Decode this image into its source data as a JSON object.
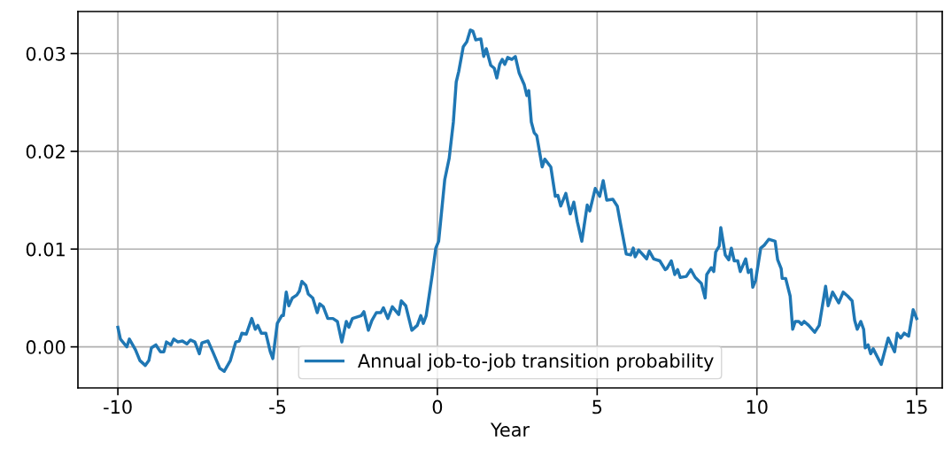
{
  "chart_data": {
    "type": "line",
    "xlabel": "Year",
    "grid": true,
    "legend": "bottom",
    "xlim": [
      -11.25,
      15.8
    ],
    "xticks": [
      -10,
      -5,
      0,
      5,
      10,
      15
    ],
    "ylim": [
      -0.0042,
      0.0343
    ],
    "yticks": [
      {
        "value": 0,
        "label": "0.00"
      },
      {
        "value": 0.01,
        "label": "0.01"
      },
      {
        "value": 0.02,
        "label": "0.02"
      },
      {
        "value": 0.03,
        "label": "0.03"
      }
    ],
    "series": [
      {
        "name": "Annual job-to-job transition probability",
        "color": "#1f77b4",
        "x": [
          -10.0,
          -9.92,
          -9.72,
          -9.64,
          -9.45,
          -9.31,
          -9.14,
          -9.03,
          -8.95,
          -8.81,
          -8.67,
          -8.56,
          -8.48,
          -8.34,
          -8.25,
          -8.12,
          -7.98,
          -7.84,
          -7.73,
          -7.59,
          -7.45,
          -7.37,
          -7.18,
          -7.03,
          -6.81,
          -6.67,
          -6.48,
          -6.31,
          -6.2,
          -6.12,
          -5.98,
          -5.81,
          -5.7,
          -5.62,
          -5.51,
          -5.37,
          -5.23,
          -5.15,
          -5.01,
          -4.87,
          -4.82,
          -4.73,
          -4.65,
          -4.54,
          -4.4,
          -4.32,
          -4.24,
          -4.12,
          -4.04,
          -3.9,
          -3.76,
          -3.68,
          -3.57,
          -3.43,
          -3.27,
          -3.13,
          -2.99,
          -2.85,
          -2.77,
          -2.66,
          -2.38,
          -2.3,
          -2.16,
          -2.05,
          -1.91,
          -1.77,
          -1.69,
          -1.55,
          -1.41,
          -1.21,
          -1.13,
          -0.99,
          -0.8,
          -0.63,
          -0.52,
          -0.44,
          -0.35,
          -0.16,
          -0.05,
          0.04,
          0.23,
          0.37,
          0.5,
          0.59,
          0.67,
          0.81,
          0.92,
          1.03,
          1.11,
          1.2,
          1.36,
          1.45,
          1.53,
          1.67,
          1.78,
          1.86,
          1.95,
          2.03,
          2.11,
          2.2,
          2.33,
          2.44,
          2.56,
          2.72,
          2.8,
          2.86,
          2.94,
          3.03,
          3.11,
          3.28,
          3.36,
          3.55,
          3.69,
          3.77,
          3.86,
          4.02,
          4.16,
          4.27,
          4.38,
          4.52,
          4.69,
          4.77,
          4.94,
          5.08,
          5.19,
          5.3,
          5.49,
          5.63,
          5.72,
          5.91,
          6.05,
          6.13,
          6.19,
          6.3,
          6.55,
          6.63,
          6.77,
          6.96,
          7.13,
          7.18,
          7.32,
          7.43,
          7.52,
          7.6,
          7.79,
          7.93,
          8.07,
          8.26,
          8.38,
          8.43,
          8.57,
          8.65,
          8.71,
          8.82,
          8.87,
          9.01,
          9.12,
          9.2,
          9.29,
          9.4,
          9.48,
          9.65,
          9.73,
          9.82,
          9.87,
          9.96,
          10.12,
          10.23,
          10.37,
          10.57,
          10.65,
          10.76,
          10.79,
          10.9,
          11.04,
          11.12,
          11.2,
          11.31,
          11.4,
          11.48,
          11.62,
          11.81,
          11.95,
          12.15,
          12.23,
          12.37,
          12.56,
          12.7,
          12.84,
          12.98,
          13.06,
          13.14,
          13.25,
          13.34,
          13.39,
          13.48,
          13.56,
          13.64,
          13.89,
          14.11,
          14.31,
          14.39,
          14.5,
          14.61,
          14.75,
          14.89,
          15.0
        ],
        "values": [
          0.002,
          0.0008,
          0.0,
          0.0008,
          -0.0003,
          -0.0014,
          -0.0019,
          -0.0014,
          -0.0001,
          0.0002,
          -0.0005,
          -0.0005,
          0.0005,
          0.0002,
          0.0008,
          0.0005,
          0.0006,
          0.0003,
          0.0007,
          0.0005,
          -0.0007,
          0.0004,
          0.0006,
          -0.0005,
          -0.0022,
          -0.0025,
          -0.0014,
          0.0005,
          0.0006,
          0.0014,
          0.0013,
          0.0029,
          0.0018,
          0.0022,
          0.0014,
          0.0014,
          -0.0005,
          -0.0012,
          0.0024,
          0.0032,
          0.0032,
          0.0056,
          0.0042,
          0.005,
          0.0053,
          0.0057,
          0.0067,
          0.0063,
          0.0054,
          0.005,
          0.0035,
          0.0044,
          0.0041,
          0.0029,
          0.0029,
          0.0026,
          0.0005,
          0.0026,
          0.002,
          0.0029,
          0.0032,
          0.0036,
          0.0017,
          0.0027,
          0.0035,
          0.0035,
          0.004,
          0.0029,
          0.0041,
          0.0033,
          0.0047,
          0.0042,
          0.0017,
          0.0022,
          0.0032,
          0.0024,
          0.0032,
          0.0074,
          0.0101,
          0.0108,
          0.0171,
          0.0193,
          0.023,
          0.0271,
          0.0282,
          0.0307,
          0.0312,
          0.0324,
          0.0323,
          0.0314,
          0.0315,
          0.0297,
          0.0305,
          0.0288,
          0.0285,
          0.0275,
          0.0289,
          0.0294,
          0.0289,
          0.0296,
          0.0294,
          0.0297,
          0.028,
          0.0268,
          0.0257,
          0.0262,
          0.023,
          0.0219,
          0.0216,
          0.0184,
          0.0192,
          0.0184,
          0.0154,
          0.0155,
          0.0144,
          0.0157,
          0.0136,
          0.0148,
          0.0128,
          0.0108,
          0.0145,
          0.0139,
          0.0162,
          0.0154,
          0.017,
          0.015,
          0.0151,
          0.0144,
          0.0128,
          0.0095,
          0.0094,
          0.0101,
          0.0092,
          0.0099,
          0.009,
          0.0098,
          0.009,
          0.0088,
          0.0079,
          0.008,
          0.0088,
          0.0074,
          0.0079,
          0.0071,
          0.0072,
          0.0079,
          0.0071,
          0.0065,
          0.005,
          0.0074,
          0.0081,
          0.0077,
          0.0097,
          0.0103,
          0.0122,
          0.0094,
          0.0089,
          0.0101,
          0.0088,
          0.0088,
          0.0077,
          0.009,
          0.0076,
          0.0079,
          0.0061,
          0.0068,
          0.0101,
          0.0104,
          0.011,
          0.0108,
          0.0089,
          0.008,
          0.007,
          0.007,
          0.0052,
          0.0018,
          0.0026,
          0.0026,
          0.0023,
          0.0026,
          0.0022,
          0.0015,
          0.0022,
          0.0062,
          0.0042,
          0.0056,
          0.0045,
          0.0056,
          0.0052,
          0.0047,
          0.0027,
          0.0018,
          0.0026,
          0.0018,
          -0.0001,
          0.0002,
          -0.0007,
          -0.0002,
          -0.0018,
          0.0009,
          -0.0005,
          0.0014,
          0.0009,
          0.0014,
          0.0011,
          0.0038,
          0.0029
        ]
      }
    ]
  }
}
